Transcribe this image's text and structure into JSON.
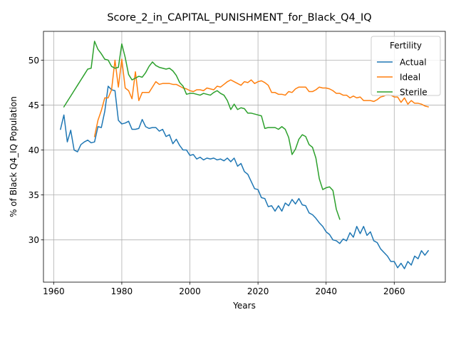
{
  "chart_data": {
    "type": "line",
    "title": "Score_2_in_CAPITAL_PUNISHMENT_for_Black_Q4_IQ",
    "xlabel": "Years",
    "ylabel": "% of Black Q4_IQ Population",
    "xlim": [
      1957,
      2075
    ],
    "ylim": [
      25.3,
      53.2
    ],
    "xticks": [
      1960,
      1980,
      2000,
      2020,
      2040,
      2060
    ],
    "yticks": [
      30,
      35,
      40,
      45,
      50
    ],
    "grid": true,
    "legend": {
      "title": "Fertility",
      "placement": "top-right"
    },
    "series": [
      {
        "name": "Actual",
        "color": "#1f77b4",
        "x": [
          1962,
          1963,
          1964,
          1965,
          1966,
          1967,
          1968,
          1969,
          1970,
          1971,
          1972,
          1973,
          1974,
          1975,
          1976,
          1977,
          1978,
          1979,
          1980,
          1981,
          1982,
          1983,
          1984,
          1985,
          1986,
          1987,
          1988,
          1989,
          1990,
          1991,
          1992,
          1993,
          1994,
          1995,
          1996,
          1997,
          1998,
          1999,
          2000,
          2001,
          2002,
          2003,
          2004,
          2005,
          2006,
          2007,
          2008,
          2009,
          2010,
          2011,
          2012,
          2013,
          2014,
          2015,
          2016,
          2017,
          2018,
          2019,
          2020,
          2021,
          2022,
          2023,
          2024,
          2025,
          2026,
          2027,
          2028,
          2029,
          2030,
          2031,
          2032,
          2033,
          2034,
          2035,
          2036,
          2037,
          2038,
          2039,
          2040,
          2041,
          2042,
          2043,
          2044,
          2045,
          2046,
          2047,
          2048,
          2049,
          2050,
          2051,
          2052,
          2053,
          2054,
          2055,
          2056,
          2057,
          2058,
          2059,
          2060,
          2061,
          2062,
          2063,
          2064,
          2065,
          2066,
          2067,
          2068,
          2069,
          2070
        ],
        "y": [
          42.3,
          43.9,
          40.9,
          42.2,
          40.0,
          39.8,
          40.6,
          40.9,
          41.1,
          40.8,
          40.9,
          42.6,
          42.5,
          44.3,
          47.1,
          46.7,
          46.6,
          43.3,
          42.9,
          43.0,
          43.2,
          42.3,
          42.3,
          42.4,
          43.4,
          42.6,
          42.4,
          42.5,
          42.5,
          42.1,
          42.3,
          41.5,
          41.7,
          40.7,
          41.2,
          40.5,
          40.0,
          40.0,
          39.4,
          39.5,
          39.0,
          39.2,
          38.9,
          39.1,
          39.0,
          39.1,
          38.9,
          39.0,
          38.8,
          39.1,
          38.7,
          39.1,
          38.2,
          38.5,
          37.6,
          37.3,
          36.5,
          35.7,
          35.6,
          34.7,
          34.6,
          33.7,
          33.8,
          33.2,
          33.8,
          33.2,
          34.1,
          33.8,
          34.5,
          34.0,
          34.6,
          33.9,
          33.8,
          33.0,
          32.8,
          32.4,
          31.9,
          31.5,
          30.9,
          30.6,
          30.0,
          29.9,
          29.6,
          30.1,
          29.9,
          30.8,
          30.3,
          31.5,
          30.7,
          31.5,
          30.5,
          30.9,
          29.9,
          29.7,
          29.0,
          28.6,
          28.2,
          27.6,
          27.6,
          26.9,
          27.4,
          26.8,
          27.6,
          27.2,
          28.2,
          27.9,
          28.8,
          28.3,
          28.8
        ]
      },
      {
        "name": "Ideal",
        "color": "#ff7f0e",
        "x": [
          1972,
          1973,
          1974,
          1975,
          1976,
          1977,
          1978,
          1979,
          1980,
          1981,
          1982,
          1983,
          1984,
          1985,
          1986,
          1987,
          1988,
          1989,
          1990,
          1991,
          1992,
          1993,
          1994,
          1995,
          1996,
          1997,
          1998,
          1999,
          2000,
          2001,
          2002,
          2003,
          2004,
          2005,
          2006,
          2007,
          2008,
          2009,
          2010,
          2011,
          2012,
          2013,
          2014,
          2015,
          2016,
          2017,
          2018,
          2019,
          2020,
          2021,
          2022,
          2023,
          2024,
          2025,
          2026,
          2027,
          2028,
          2029,
          2030,
          2031,
          2032,
          2033,
          2034,
          2035,
          2036,
          2037,
          2038,
          2039,
          2040,
          2041,
          2042,
          2043,
          2044,
          2045,
          2046,
          2047,
          2048,
          2049,
          2050,
          2051,
          2052,
          2053,
          2054,
          2055,
          2056,
          2057,
          2058,
          2059,
          2060,
          2061,
          2062,
          2063,
          2064,
          2065,
          2066,
          2067,
          2068,
          2069,
          2070
        ],
        "y": [
          41.5,
          43.3,
          44.4,
          45.8,
          45.8,
          46.7,
          50.0,
          47.0,
          50.1,
          46.9,
          46.6,
          45.7,
          48.7,
          45.5,
          46.4,
          46.4,
          46.4,
          47.0,
          47.6,
          47.3,
          47.4,
          47.4,
          47.4,
          47.3,
          47.3,
          47.1,
          46.9,
          46.8,
          46.6,
          46.5,
          46.7,
          46.7,
          46.6,
          46.9,
          46.8,
          46.7,
          47.1,
          47.0,
          47.3,
          47.6,
          47.8,
          47.6,
          47.4,
          47.2,
          47.6,
          47.5,
          47.8,
          47.4,
          47.6,
          47.7,
          47.5,
          47.2,
          46.4,
          46.4,
          46.2,
          46.2,
          46.1,
          46.5,
          46.4,
          46.8,
          47.0,
          47.0,
          47.0,
          46.5,
          46.5,
          46.7,
          47.0,
          46.9,
          46.9,
          46.8,
          46.6,
          46.3,
          46.3,
          46.1,
          46.1,
          45.8,
          46.0,
          45.8,
          45.9,
          45.5,
          45.5,
          45.5,
          45.4,
          45.6,
          45.9,
          46.0,
          46.2,
          46.1,
          45.9,
          45.9,
          45.3,
          45.8,
          45.1,
          45.5,
          45.2,
          45.2,
          45.1,
          44.9,
          44.8
        ]
      },
      {
        "name": "Sterile",
        "color": "#2ca02c",
        "x": [
          1963,
          1964,
          1965,
          1966,
          1967,
          1968,
          1969,
          1970,
          1971,
          1972,
          1973,
          1974,
          1975,
          1976,
          1977,
          1978,
          1979,
          1980,
          1981,
          1982,
          1983,
          1984,
          1985,
          1986,
          1987,
          1988,
          1989,
          1990,
          1991,
          1992,
          1993,
          1994,
          1995,
          1996,
          1997,
          1998,
          1999,
          2000,
          2001,
          2002,
          2003,
          2004,
          2005,
          2006,
          2007,
          2008,
          2009,
          2010,
          2011,
          2012,
          2013,
          2014,
          2015,
          2016,
          2017,
          2018,
          2019,
          2020,
          2021,
          2022,
          2023,
          2024,
          2025,
          2026,
          2027,
          2028,
          2029,
          2030,
          2031,
          2032,
          2033,
          2034,
          2035,
          2036,
          2037,
          2038,
          2039,
          2040,
          2041,
          2042,
          2043,
          2044
        ],
        "y": [
          44.8,
          45.4,
          46.0,
          46.6,
          47.2,
          47.8,
          48.4,
          49.0,
          49.1,
          52.1,
          51.2,
          50.7,
          50.1,
          50.0,
          49.3,
          49.1,
          49.2,
          51.8,
          50.3,
          48.4,
          47.8,
          48.0,
          48.2,
          48.1,
          48.6,
          49.3,
          49.8,
          49.4,
          49.2,
          49.1,
          49.0,
          49.1,
          48.8,
          48.3,
          47.5,
          47.1,
          46.2,
          46.3,
          46.3,
          46.2,
          46.1,
          46.3,
          46.2,
          46.1,
          46.4,
          46.6,
          46.3,
          46.1,
          45.5,
          44.5,
          45.1,
          44.5,
          44.7,
          44.6,
          44.1,
          44.1,
          44.0,
          43.9,
          43.8,
          42.4,
          42.5,
          42.5,
          42.5,
          42.3,
          42.6,
          42.3,
          41.4,
          39.5,
          40.1,
          41.2,
          41.7,
          41.5,
          40.6,
          40.3,
          39.1,
          36.8,
          35.6,
          35.8,
          35.9,
          35.5,
          33.4,
          32.3
        ]
      }
    ]
  }
}
